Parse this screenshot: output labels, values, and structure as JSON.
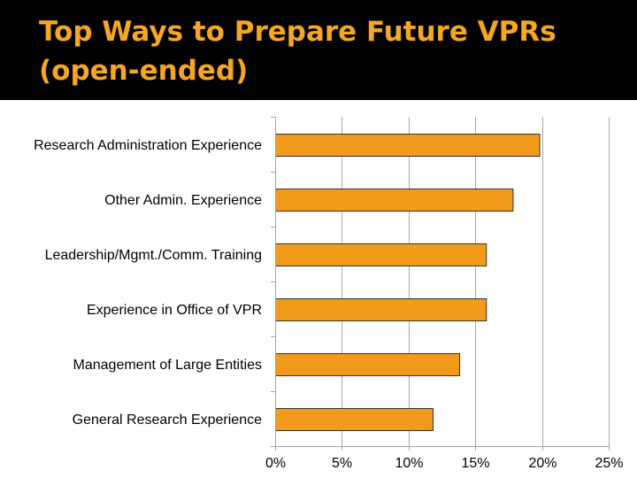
{
  "slide": {
    "title_line1": "Top Ways to Prepare Future VPRs",
    "title_line2": "(open-ended)"
  },
  "colors": {
    "title": "#f5a623",
    "bar_fill": "#f29a1c",
    "bar_stroke": "#333333",
    "grid": "#a6a6a6"
  },
  "chart_data": {
    "type": "bar",
    "orientation": "horizontal",
    "title": "Top Ways to Prepare Future VPRs (open-ended)",
    "categories": [
      "Research Administration Experience",
      "Other Admin. Experience",
      "Leadership/Mgmt./Comm. Training",
      "Experience in Office of VPR",
      "Management of Large Entities",
      "General Research Experience"
    ],
    "values": [
      19.8,
      17.8,
      15.8,
      15.8,
      13.8,
      11.8
    ],
    "unit": "%",
    "xlim": [
      0,
      25
    ],
    "xticks": [
      0,
      5,
      10,
      15,
      20,
      25
    ],
    "xtick_labels": [
      "0%",
      "5%",
      "10%",
      "15%",
      "20%",
      "25%"
    ],
    "xlabel": "",
    "ylabel": "",
    "grid": true,
    "legend": "none"
  }
}
